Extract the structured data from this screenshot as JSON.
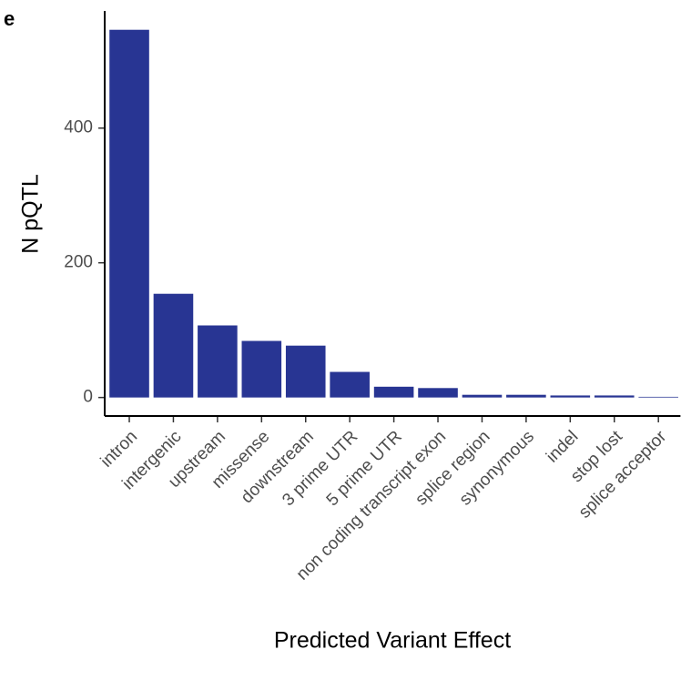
{
  "chart_data": {
    "type": "bar",
    "panel_label": "e",
    "x_label": "Predicted Variant Effect",
    "y_label": "N pQTL",
    "categories": [
      "intron",
      "intergenic",
      "upstream",
      "missense",
      "downstream",
      "3 prime UTR",
      "5 prime UTR",
      "non coding transcript exon",
      "splice region",
      "synonymous",
      "indel",
      "stop lost",
      "splice acceptor"
    ],
    "values": [
      546,
      154,
      107,
      84,
      77,
      38,
      16,
      14,
      4,
      4,
      3,
      3,
      1
    ],
    "color": "#283593",
    "ylim": [
      -27.5,
      574
    ],
    "yticks": [
      0,
      200,
      400
    ],
    "grid": false
  }
}
